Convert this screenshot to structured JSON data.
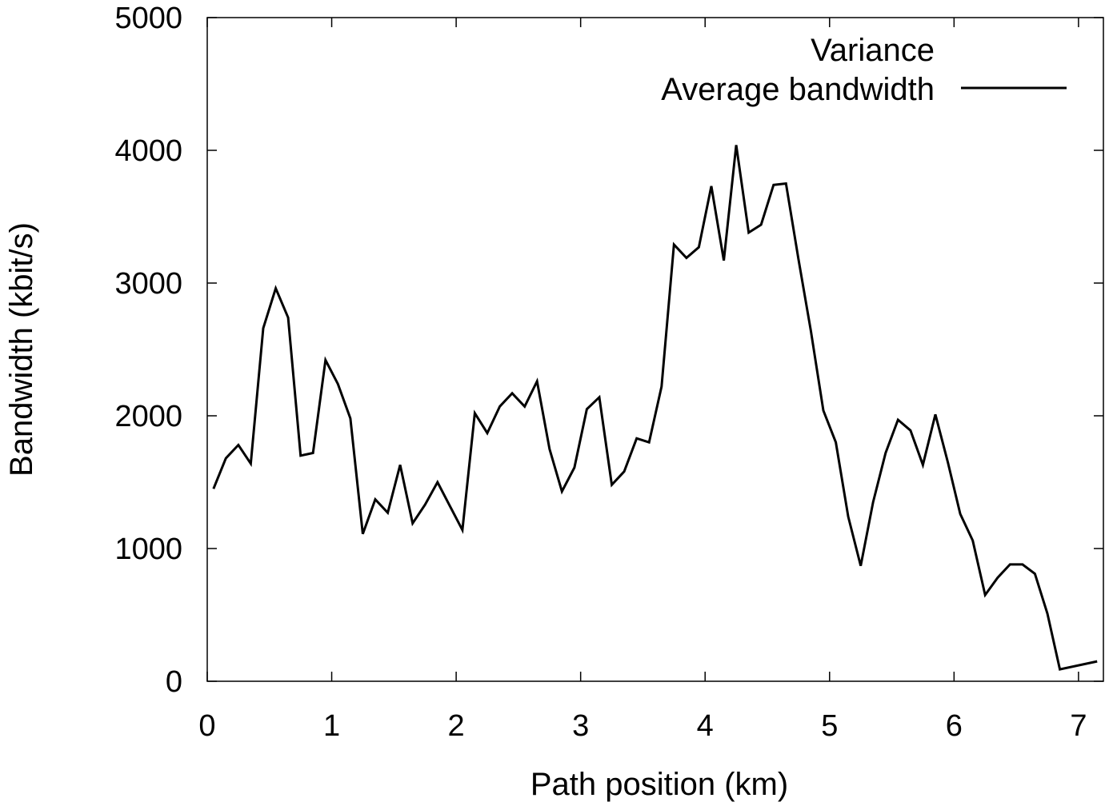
{
  "chart_data": {
    "type": "line",
    "title": "",
    "xlabel": "Path position (km)",
    "ylabel": "Bandwidth (kbit/s)",
    "xlim": [
      0,
      7.2
    ],
    "ylim": [
      0,
      5000
    ],
    "xticks": [
      0,
      1,
      2,
      3,
      4,
      5,
      6,
      7
    ],
    "yticks": [
      0,
      1000,
      2000,
      3000,
      4000,
      5000
    ],
    "grid": false,
    "legend_position": "top-right",
    "legend": [
      "Variance",
      "Average bandwidth"
    ],
    "series": [
      {
        "name": "Average bandwidth",
        "color": "#000000",
        "x": [
          0.05,
          0.15,
          0.25,
          0.35,
          0.45,
          0.55,
          0.65,
          0.75,
          0.85,
          0.95,
          1.05,
          1.15,
          1.25,
          1.35,
          1.45,
          1.55,
          1.65,
          1.75,
          1.85,
          1.95,
          2.05,
          2.15,
          2.25,
          2.35,
          2.45,
          2.55,
          2.65,
          2.75,
          2.85,
          2.95,
          3.05,
          3.15,
          3.25,
          3.35,
          3.45,
          3.55,
          3.65,
          3.75,
          3.85,
          3.95,
          4.05,
          4.15,
          4.25,
          4.35,
          4.45,
          4.55,
          4.65,
          4.75,
          4.85,
          4.95,
          5.05,
          5.15,
          5.25,
          5.35,
          5.45,
          5.55,
          5.65,
          5.75,
          5.85,
          5.95,
          6.05,
          6.15,
          6.25,
          6.35,
          6.45,
          6.55,
          6.65,
          6.75,
          6.85,
          7.15
        ],
        "values": [
          1450,
          1680,
          1780,
          1640,
          2660,
          2960,
          2740,
          1700,
          1720,
          2420,
          2240,
          1980,
          1110,
          1370,
          1270,
          1630,
          1190,
          1330,
          1500,
          1320,
          1140,
          2020,
          1870,
          2070,
          2170,
          2070,
          2260,
          1750,
          1430,
          1610,
          2050,
          2140,
          1480,
          1580,
          1830,
          1800,
          2220,
          3290,
          3190,
          3270,
          3730,
          3170,
          4040,
          3380,
          3440,
          3740,
          3750,
          3180,
          2640,
          2040,
          1800,
          1240,
          870,
          1350,
          1720,
          1970,
          1890,
          1630,
          2010,
          1650,
          1260,
          1060,
          650,
          780,
          880,
          880,
          810,
          510,
          90,
          150
        ]
      }
    ]
  }
}
